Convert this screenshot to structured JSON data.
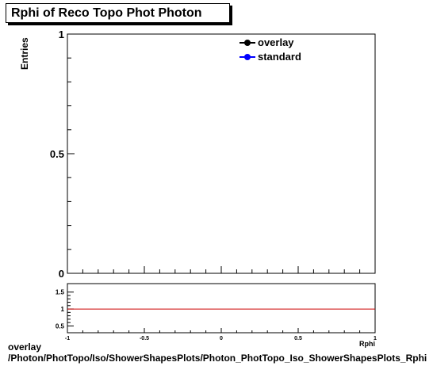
{
  "title": "Rphi of Reco Topo Phot Photon",
  "chart_data": [
    {
      "type": "line",
      "title": "Rphi of Reco Topo Phot Photon",
      "ylabel": "Entries",
      "xlabel": "Rphi",
      "xlim": [
        -1,
        1
      ],
      "ylim": [
        0,
        1
      ],
      "y_ticks": [
        "0",
        "0.5",
        "1"
      ],
      "x_ticks": [],
      "legend_position": "top-right",
      "series": [
        {
          "name": "overlay",
          "color": "#000000",
          "values": []
        },
        {
          "name": "standard",
          "color": "#0000ff",
          "values": []
        }
      ]
    },
    {
      "type": "line",
      "xlim": [
        -1,
        1
      ],
      "ylim": [
        0.3,
        1.75
      ],
      "x_ticks": [
        "-1",
        "-0.5",
        "0",
        "0.5",
        "1"
      ],
      "y_ticks": [
        "0.5",
        "1",
        "1.5"
      ],
      "xlabel": "Rphi",
      "series": [
        {
          "color": "#cc0000",
          "x": [
            -1,
            1
          ],
          "values": [
            1,
            1
          ]
        }
      ]
    }
  ],
  "legend": [
    {
      "label": "overlay",
      "color": "#000000"
    },
    {
      "label": "standard",
      "color": "#0000ff"
    }
  ],
  "footer": {
    "line1": "overlay",
    "line2": "/Photon/PhotTopo/Iso/ShowerShapesPlots/Photon_PhotTopo_Iso_ShowerShapesPlots_Rphi"
  }
}
